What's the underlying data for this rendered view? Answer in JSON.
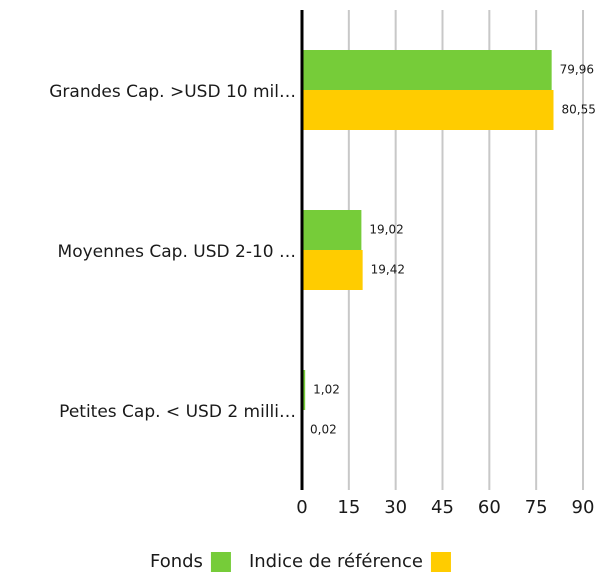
{
  "chart_data": {
    "type": "bar",
    "orientation": "horizontal",
    "categories": [
      "Grandes Cap. >USD 10 mil…",
      "Moyennes Cap. USD 2-10 …",
      "Petites Cap. < USD 2 milli…"
    ],
    "series": [
      {
        "name": "Fonds",
        "color": "#76cc39",
        "values": [
          79.96,
          19.02,
          1.02
        ],
        "value_labels": [
          "79,96",
          "19,02",
          "1,02"
        ]
      },
      {
        "name": "Indice de référence",
        "color": "#ffcc00",
        "values": [
          80.55,
          19.42,
          0.02
        ],
        "value_labels": [
          "80,55",
          "19,42",
          "0,02"
        ]
      }
    ],
    "xlim": [
      0,
      90
    ],
    "xticks": [
      0,
      15,
      30,
      45,
      60,
      75,
      90
    ],
    "grid": true,
    "legend": "bottom"
  }
}
